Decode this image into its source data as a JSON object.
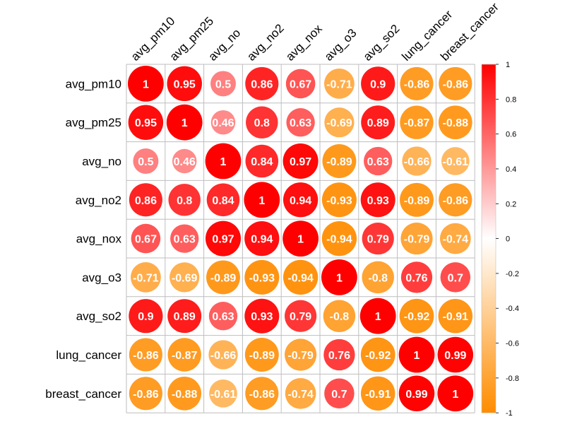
{
  "chart_data": {
    "type": "heatmap",
    "variables": [
      "avg_pm10",
      "avg_pm25",
      "avg_no",
      "avg_no2",
      "avg_nox",
      "avg_o3",
      "avg_so2",
      "lung_cancer",
      "breast_cancer"
    ],
    "matrix": [
      [
        1,
        0.95,
        0.5,
        0.86,
        0.67,
        -0.71,
        0.9,
        -0.86,
        -0.86
      ],
      [
        0.95,
        1,
        0.46,
        0.8,
        0.63,
        -0.69,
        0.89,
        -0.87,
        -0.88
      ],
      [
        0.5,
        0.46,
        1,
        0.84,
        0.97,
        -0.89,
        0.63,
        -0.66,
        -0.61
      ],
      [
        0.86,
        0.8,
        0.84,
        1,
        0.94,
        -0.93,
        0.93,
        -0.89,
        -0.86
      ],
      [
        0.67,
        0.63,
        0.97,
        0.94,
        1,
        -0.94,
        0.79,
        -0.79,
        -0.74
      ],
      [
        -0.71,
        -0.69,
        -0.89,
        -0.93,
        -0.94,
        1,
        -0.8,
        0.76,
        0.7
      ],
      [
        0.9,
        0.89,
        0.63,
        0.93,
        0.79,
        -0.8,
        1,
        -0.92,
        -0.91
      ],
      [
        -0.86,
        -0.87,
        -0.66,
        -0.89,
        -0.79,
        0.76,
        -0.92,
        1,
        0.99
      ],
      [
        -0.86,
        -0.88,
        -0.61,
        -0.86,
        -0.74,
        0.7,
        -0.91,
        0.99,
        1
      ]
    ],
    "colorbar": {
      "range": [
        -1,
        1
      ],
      "ticks": [
        "1",
        "0.8",
        "0.6",
        "0.4",
        "0.2",
        "0",
        "-0.2",
        "-0.4",
        "-0.6",
        "-0.8",
        "-1"
      ]
    },
    "colors": {
      "negative": "#FF8C00",
      "neutral": "#FFFFFF",
      "positive": "#FF0000",
      "grid": "#BEBEBE"
    },
    "grid": true,
    "legend_position": "right"
  }
}
